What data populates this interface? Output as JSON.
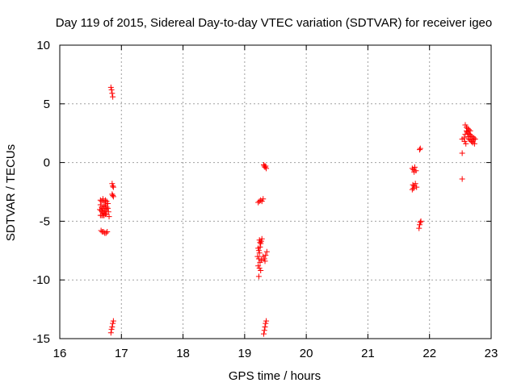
{
  "chart_data": {
    "type": "scatter",
    "title": "Day 119 of 2015, Sidereal Day-to-day VTEC variation (SDTVAR) for receiver igeo",
    "xlabel": "GPS time / hours",
    "ylabel": "SDTVAR / TECUs",
    "xlim": [
      16,
      23
    ],
    "ylim": [
      -15,
      10
    ],
    "xticks": [
      16,
      17,
      18,
      19,
      20,
      21,
      22,
      23
    ],
    "yticks": [
      -15,
      -10,
      -5,
      0,
      5,
      10
    ],
    "grid": true,
    "marker": "plus",
    "color": "#ff0000",
    "series": [
      {
        "name": "SDTVAR",
        "points": [
          [
            16.83,
            6.4
          ],
          [
            16.84,
            6.2
          ],
          [
            16.85,
            5.9
          ],
          [
            16.86,
            5.6
          ],
          [
            16.66,
            -3.2
          ],
          [
            16.68,
            -3.3
          ],
          [
            16.7,
            -3.1
          ],
          [
            16.72,
            -3.4
          ],
          [
            16.74,
            -3.2
          ],
          [
            16.76,
            -3.3
          ],
          [
            16.66,
            -3.6
          ],
          [
            16.68,
            -3.8
          ],
          [
            16.7,
            -3.9
          ],
          [
            16.72,
            -3.7
          ],
          [
            16.74,
            -3.6
          ],
          [
            16.76,
            -3.8
          ],
          [
            16.65,
            -4.0
          ],
          [
            16.67,
            -4.1
          ],
          [
            16.69,
            -4.2
          ],
          [
            16.71,
            -4.3
          ],
          [
            16.73,
            -4.1
          ],
          [
            16.75,
            -4.0
          ],
          [
            16.66,
            -4.5
          ],
          [
            16.68,
            -4.5
          ],
          [
            16.7,
            -4.5
          ],
          [
            16.72,
            -4.5
          ],
          [
            16.74,
            -4.4
          ],
          [
            16.76,
            -4.4
          ],
          [
            16.78,
            -3.5
          ],
          [
            16.78,
            -3.9
          ],
          [
            16.79,
            -4.2
          ],
          [
            16.8,
            -4.6
          ],
          [
            16.85,
            -1.8
          ],
          [
            16.86,
            -2.0
          ],
          [
            16.87,
            -2.1
          ],
          [
            16.85,
            -2.7
          ],
          [
            16.86,
            -2.8
          ],
          [
            16.87,
            -2.9
          ],
          [
            16.67,
            -5.8
          ],
          [
            16.69,
            -5.9
          ],
          [
            16.71,
            -5.9
          ],
          [
            16.73,
            -6.0
          ],
          [
            16.75,
            -6.0
          ],
          [
            16.77,
            -5.9
          ],
          [
            16.83,
            -14.5
          ],
          [
            16.84,
            -14.2
          ],
          [
            16.85,
            -14.0
          ],
          [
            16.86,
            -13.7
          ],
          [
            16.87,
            -13.5
          ],
          [
            19.22,
            -3.4
          ],
          [
            19.24,
            -3.3
          ],
          [
            19.26,
            -3.2
          ],
          [
            19.28,
            -3.3
          ],
          [
            19.3,
            -3.1
          ],
          [
            19.31,
            -0.2
          ],
          [
            19.32,
            -0.3
          ],
          [
            19.33,
            -0.4
          ],
          [
            19.34,
            -0.3
          ],
          [
            19.35,
            -0.5
          ],
          [
            19.24,
            -6.6
          ],
          [
            19.25,
            -6.8
          ],
          [
            19.26,
            -6.9
          ],
          [
            19.27,
            -6.7
          ],
          [
            19.28,
            -6.5
          ],
          [
            19.22,
            -7.3
          ],
          [
            19.23,
            -7.5
          ],
          [
            19.24,
            -7.7
          ],
          [
            19.25,
            -7.2
          ],
          [
            19.21,
            -8.0
          ],
          [
            19.23,
            -8.2
          ],
          [
            19.25,
            -8.5
          ],
          [
            19.27,
            -8.3
          ],
          [
            19.22,
            -8.8
          ],
          [
            19.24,
            -9.0
          ],
          [
            19.26,
            -9.2
          ],
          [
            19.23,
            -9.7
          ],
          [
            19.3,
            -8.0
          ],
          [
            19.32,
            -8.2
          ],
          [
            19.34,
            -7.9
          ],
          [
            19.36,
            -7.6
          ],
          [
            19.33,
            -8.4
          ],
          [
            19.31,
            -14.6
          ],
          [
            19.32,
            -14.3
          ],
          [
            19.33,
            -14.0
          ],
          [
            19.34,
            -13.7
          ],
          [
            19.35,
            -13.5
          ],
          [
            21.72,
            -0.5
          ],
          [
            21.74,
            -0.6
          ],
          [
            21.76,
            -0.4
          ],
          [
            21.78,
            -0.7
          ],
          [
            21.75,
            -0.8
          ],
          [
            21.73,
            -1.9
          ],
          [
            21.75,
            -2.0
          ],
          [
            21.77,
            -1.8
          ],
          [
            21.79,
            -2.1
          ],
          [
            21.72,
            -2.3
          ],
          [
            21.74,
            -2.2
          ],
          [
            21.84,
            1.1
          ],
          [
            21.85,
            1.2
          ],
          [
            21.83,
            -5.6
          ],
          [
            21.84,
            -5.3
          ],
          [
            21.85,
            -5.1
          ],
          [
            21.86,
            -5.0
          ],
          [
            22.53,
            0.8
          ],
          [
            22.53,
            -1.4
          ],
          [
            22.53,
            2.0
          ],
          [
            22.56,
            2.1
          ],
          [
            22.58,
            2.4
          ],
          [
            22.6,
            2.7
          ],
          [
            22.62,
            2.9
          ],
          [
            22.58,
            3.2
          ],
          [
            22.6,
            3.0
          ],
          [
            22.62,
            2.2
          ],
          [
            22.64,
            2.0
          ],
          [
            22.66,
            1.9
          ],
          [
            22.68,
            1.8
          ],
          [
            22.7,
            1.7
          ],
          [
            22.72,
            2.1
          ],
          [
            22.57,
            1.8
          ],
          [
            22.59,
            1.6
          ],
          [
            22.61,
            2.6
          ],
          [
            22.63,
            2.5
          ],
          [
            22.65,
            2.4
          ],
          [
            22.67,
            2.3
          ],
          [
            22.69,
            2.2
          ],
          [
            22.71,
            1.9
          ],
          [
            22.73,
            1.6
          ],
          [
            22.74,
            2.0
          ],
          [
            22.66,
            2.7
          ],
          [
            22.64,
            2.8
          ]
        ]
      }
    ]
  }
}
